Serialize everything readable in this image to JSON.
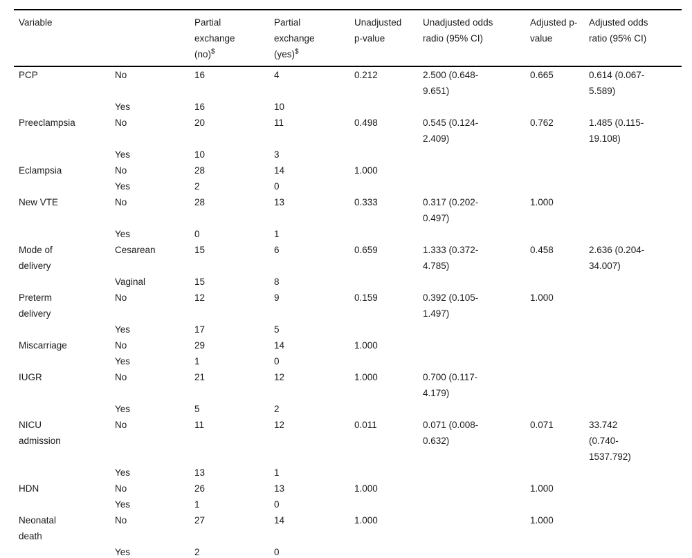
{
  "table": {
    "headers": [
      {
        "label": "Variable",
        "sup": ""
      },
      {
        "label": "",
        "sup": ""
      },
      {
        "label": "Partial exchange (no)",
        "sup": "$"
      },
      {
        "label": "Partial exchange (yes)",
        "sup": "$"
      },
      {
        "label": "Unadjusted p-value",
        "sup": ""
      },
      {
        "label": "Unadjusted odds radio (95% CI)",
        "sup": ""
      },
      {
        "label": "Adjusted p-value",
        "sup": ""
      },
      {
        "label": "Adjusted odds ratio (95% CI)",
        "sup": ""
      }
    ],
    "rows": [
      {
        "variable": "PCP",
        "category": "No",
        "partial_no": "16",
        "partial_yes": "4",
        "unadj_p": "0.212",
        "unadj_or": "2.500 (0.648-9.651)",
        "adj_p": "0.665",
        "adj_or": "0.614 (0.067-5.589)"
      },
      {
        "variable": "",
        "category": "Yes",
        "partial_no": "16",
        "partial_yes": "10",
        "unadj_p": "",
        "unadj_or": "",
        "adj_p": "",
        "adj_or": ""
      },
      {
        "variable": "Preeclampsia",
        "category": "No",
        "partial_no": "20",
        "partial_yes": "11",
        "unadj_p": "0.498",
        "unadj_or": "0.545 (0.124-2.409)",
        "adj_p": "0.762",
        "adj_or": "1.485 (0.115-19.108)"
      },
      {
        "variable": "",
        "category": "Yes",
        "partial_no": "10",
        "partial_yes": "3",
        "unadj_p": "",
        "unadj_or": "",
        "adj_p": "",
        "adj_or": ""
      },
      {
        "variable": "Eclampsia",
        "category": "No",
        "partial_no": "28",
        "partial_yes": "14",
        "unadj_p": "1.000",
        "unadj_or": "",
        "adj_p": "",
        "adj_or": ""
      },
      {
        "variable": "",
        "category": "Yes",
        "partial_no": "2",
        "partial_yes": "0",
        "unadj_p": "",
        "unadj_or": "",
        "adj_p": "",
        "adj_or": ""
      },
      {
        "variable": "New VTE",
        "category": "No",
        "partial_no": "28",
        "partial_yes": "13",
        "unadj_p": "0.333",
        "unadj_or": "0.317 (0.202-0.497)",
        "adj_p": "1.000",
        "adj_or": ""
      },
      {
        "variable": "",
        "category": "Yes",
        "partial_no": "0",
        "partial_yes": "1",
        "unadj_p": "",
        "unadj_or": "",
        "adj_p": "",
        "adj_or": ""
      },
      {
        "variable": "Mode of delivery",
        "category": "Cesarean",
        "partial_no": "15",
        "partial_yes": "6",
        "unadj_p": "0.659",
        "unadj_or": "1.333 (0.372-4.785)",
        "adj_p": "0.458",
        "adj_or": "2.636 (0.204-34.007)"
      },
      {
        "variable": "",
        "category": "Vaginal",
        "partial_no": "15",
        "partial_yes": "8",
        "unadj_p": "",
        "unadj_or": "",
        "adj_p": "",
        "adj_or": ""
      },
      {
        "variable": "Preterm delivery",
        "category": "No",
        "partial_no": "12",
        "partial_yes": "9",
        "unadj_p": "0.159",
        "unadj_or": "0.392 (0.105-1.497)",
        "adj_p": "1.000",
        "adj_or": ""
      },
      {
        "variable": "",
        "category": "Yes",
        "partial_no": "17",
        "partial_yes": "5",
        "unadj_p": "",
        "unadj_or": "",
        "adj_p": "",
        "adj_or": ""
      },
      {
        "variable": "Miscarriage",
        "category": "No",
        "partial_no": "29",
        "partial_yes": "14",
        "unadj_p": "1.000",
        "unadj_or": "",
        "adj_p": "",
        "adj_or": ""
      },
      {
        "variable": "",
        "category": "Yes",
        "partial_no": "1",
        "partial_yes": "0",
        "unadj_p": "",
        "unadj_or": "",
        "adj_p": "",
        "adj_or": ""
      },
      {
        "variable": "IUGR",
        "category": "No",
        "partial_no": "21",
        "partial_yes": "12",
        "unadj_p": "1.000",
        "unadj_or": "0.700 (0.117-4.179)",
        "adj_p": "",
        "adj_or": ""
      },
      {
        "variable": "",
        "category": "Yes",
        "partial_no": "5",
        "partial_yes": "2",
        "unadj_p": "",
        "unadj_or": "",
        "adj_p": "",
        "adj_or": ""
      },
      {
        "variable": "NICU admission",
        "category": "No",
        "partial_no": "11",
        "partial_yes": "12",
        "unadj_p": "0.011",
        "unadj_or": "0.071 (0.008-0.632)",
        "adj_p": "0.071",
        "adj_or": "33.742 (0.740-1537.792)"
      },
      {
        "variable": "",
        "category": "Yes",
        "partial_no": "13",
        "partial_yes": "1",
        "unadj_p": "",
        "unadj_or": "",
        "adj_p": "",
        "adj_or": ""
      },
      {
        "variable": "HDN",
        "category": "No",
        "partial_no": "26",
        "partial_yes": "13",
        "unadj_p": "1.000",
        "unadj_or": "",
        "adj_p": "1.000",
        "adj_or": ""
      },
      {
        "variable": "",
        "category": "Yes",
        "partial_no": "1",
        "partial_yes": "0",
        "unadj_p": "",
        "unadj_or": "",
        "adj_p": "",
        "adj_or": ""
      },
      {
        "variable": "Neonatal death",
        "category": "No",
        "partial_no": "27",
        "partial_yes": "14",
        "unadj_p": "1.000",
        "unadj_or": "",
        "adj_p": "1.000",
        "adj_or": ""
      },
      {
        "variable": "",
        "category": "Yes",
        "partial_no": "2",
        "partial_yes": "0",
        "unadj_p": "",
        "unadj_or": "",
        "adj_p": "",
        "adj_or": ""
      }
    ]
  }
}
